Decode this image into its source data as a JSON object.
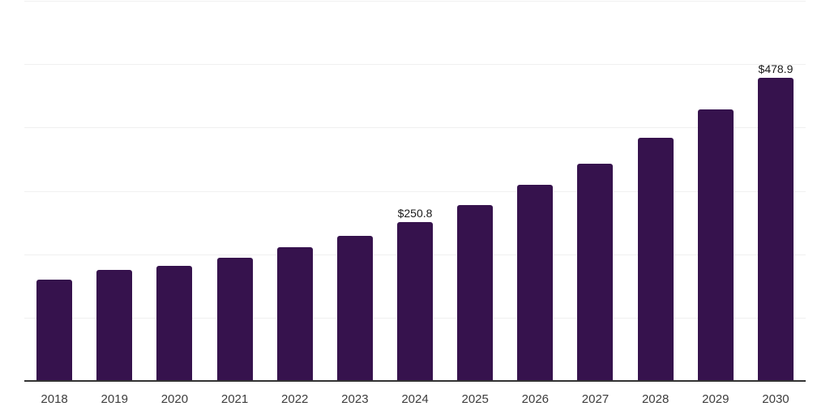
{
  "chart_data": {
    "type": "bar",
    "title": "",
    "xlabel": "",
    "ylabel": "",
    "categories": [
      "2018",
      "2019",
      "2020",
      "2021",
      "2022",
      "2023",
      "2024",
      "2025",
      "2026",
      "2027",
      "2028",
      "2029",
      "2030"
    ],
    "values": [
      159.6,
      174.9,
      182.1,
      194.2,
      211.0,
      229.1,
      250.8,
      277.3,
      309.2,
      343.3,
      383.8,
      428.6,
      478.9
    ],
    "labels": [
      "",
      "",
      "",
      "",
      "",
      "",
      "$250.8",
      "",
      "",
      "",
      "",
      "",
      "$478.9"
    ],
    "ylim": [
      0,
      600
    ],
    "grid_step": 100,
    "grid": "horizontal-only",
    "legend_position": "none",
    "colors": {
      "bar": "#36124D",
      "gridline": "#f0f0f0",
      "axis_line": "#333333",
      "tick_label": "#3d3d3d",
      "value_label": "#1a1a1a",
      "background": "#ffffff"
    }
  }
}
